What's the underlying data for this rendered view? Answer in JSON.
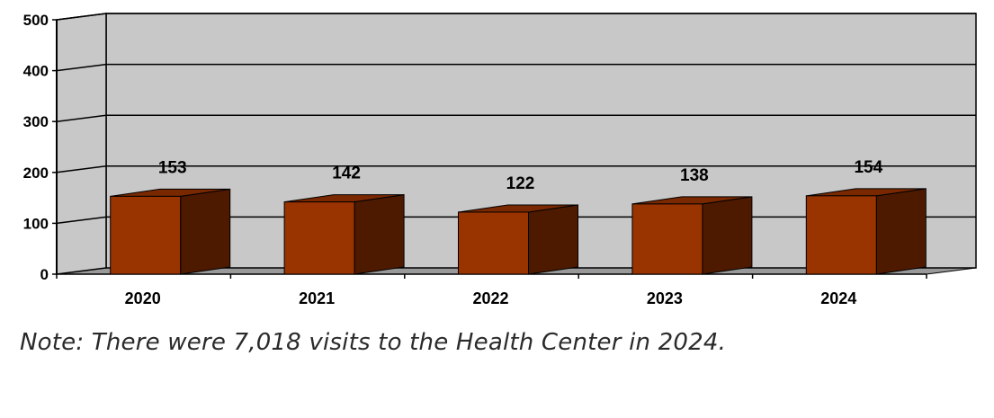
{
  "chart_data": {
    "type": "bar",
    "style": "3d",
    "categories": [
      "2020",
      "2021",
      "2022",
      "2023",
      "2024"
    ],
    "values": [
      153,
      142,
      122,
      138,
      154
    ],
    "data_labels": [
      "153",
      "142",
      "122",
      "138",
      "154"
    ],
    "y_ticks": [
      "0",
      "100",
      "200",
      "300",
      "400",
      "500"
    ],
    "ylim": [
      0,
      500
    ],
    "grid": true,
    "legend": "none",
    "colors": {
      "bar_front": "#993300",
      "bar_side": "#4d1a00",
      "bar_top": "#7a2800",
      "wall": "#c8c8c8",
      "floor": "#999999",
      "gridline": "#000000"
    }
  },
  "note": "Note: There were 7,018 visits to the Health Center in 2024."
}
